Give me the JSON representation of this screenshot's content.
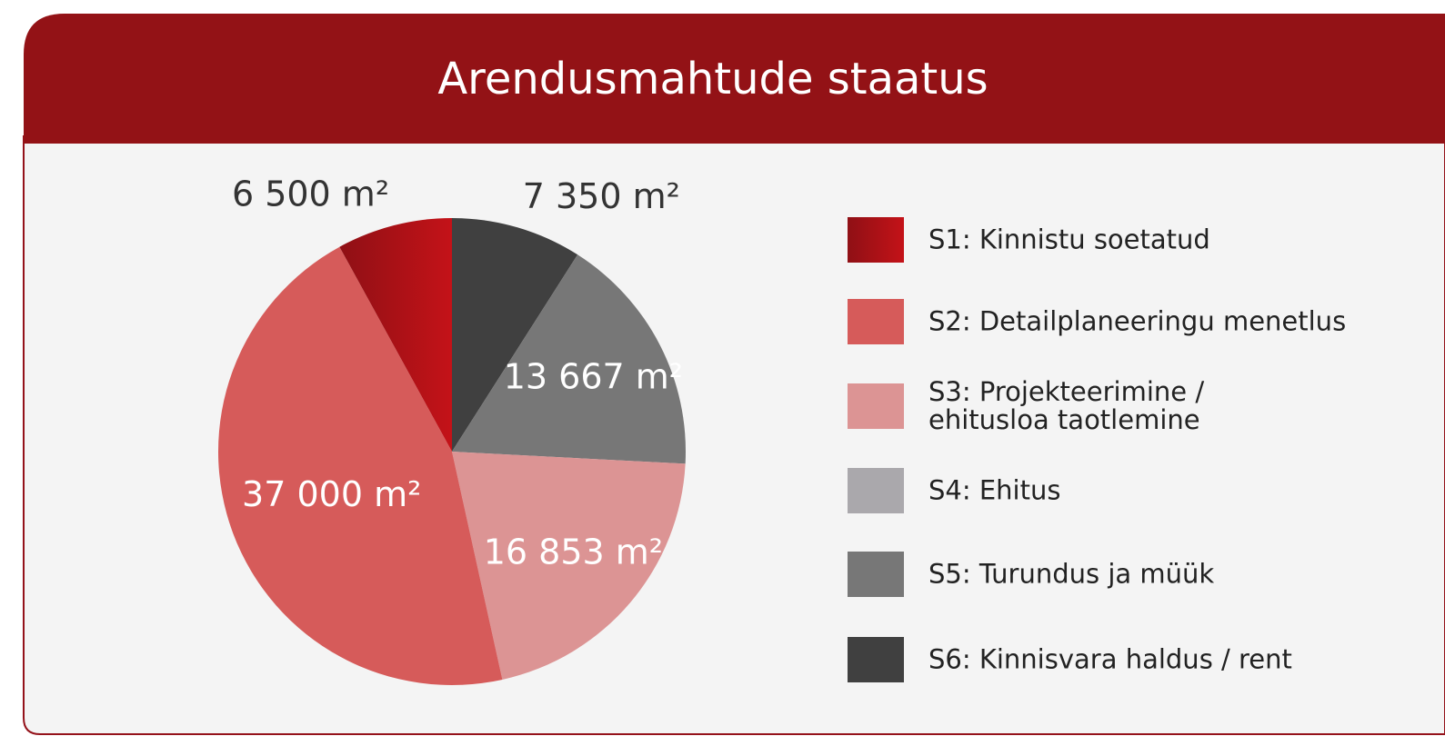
{
  "chart_data": {
    "type": "pie",
    "title": "Arendusmahtude staatus",
    "categories": [
      "S1: Kinnistu soetatud",
      "S2: Detailplaneeringu menetlus",
      "S3: Projekteerimine /\nehitusloa taotlemine",
      "S4: Ehitus",
      "S5: Turundus ja müük",
      "S6: Kinnisvara haldus / rent"
    ],
    "values": [
      6500,
      37000,
      16853,
      0,
      13667,
      7350
    ],
    "value_labels": [
      "6 500 m²",
      "37 000 m²",
      "16 853 m²",
      null,
      "13 667 m²",
      "7 350 m²"
    ],
    "colors": [
      "#c41218",
      "#d65b5a",
      "#dc9494",
      "#aaa8ac",
      "#777777",
      "#404040"
    ],
    "legend": "right"
  }
}
